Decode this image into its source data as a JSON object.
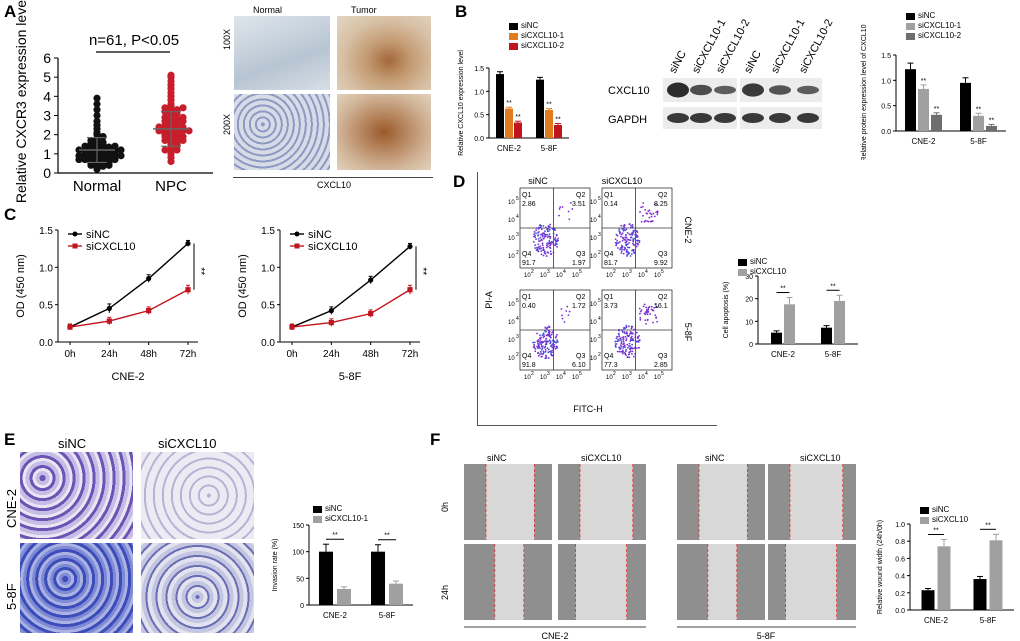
{
  "panels": {
    "A": {
      "letter": "A",
      "scatter": {
        "ylabel": "Relative CXCR3 expression level",
        "stat": "n=61, P<0.05",
        "groups": [
          "Normal",
          "NPC"
        ],
        "yticks": [
          "0",
          "1",
          "2",
          "3",
          "4",
          "5",
          "6"
        ],
        "ylim": [
          0,
          6
        ],
        "normal_points": [
          0.2,
          0.3,
          0.35,
          0.4,
          0.45,
          0.5,
          0.55,
          0.6,
          0.6,
          0.65,
          0.7,
          0.7,
          0.75,
          0.8,
          0.8,
          0.85,
          0.9,
          0.9,
          0.95,
          1.0,
          1.0,
          1.05,
          1.1,
          1.1,
          1.15,
          1.2,
          1.2,
          1.25,
          1.3,
          1.35,
          1.4,
          1.45,
          1.5,
          1.55,
          1.6,
          1.7,
          1.8,
          1.9,
          2.0,
          2.1,
          2.3,
          2.5,
          2.7,
          3.0,
          3.3,
          3.6,
          0.4,
          0.6,
          0.8,
          1.0,
          1.2,
          1.4,
          1.6,
          0.9,
          1.1,
          1.3,
          0.7,
          0.5,
          1.0,
          1.2,
          3.9
        ],
        "npc_points": [
          0.6,
          0.8,
          1.0,
          1.1,
          1.2,
          1.3,
          1.4,
          1.5,
          1.6,
          1.7,
          1.8,
          1.8,
          1.9,
          2.0,
          2.0,
          2.1,
          2.1,
          2.2,
          2.2,
          2.3,
          2.3,
          2.4,
          2.5,
          2.5,
          2.6,
          2.7,
          2.8,
          2.9,
          3.0,
          3.1,
          3.2,
          3.3,
          3.4,
          3.5,
          3.6,
          3.8,
          4.0,
          4.2,
          4.4,
          4.6,
          5.0,
          1.5,
          1.7,
          1.9,
          2.1,
          2.3,
          2.5,
          2.7,
          2.9,
          3.1,
          3.3,
          2.0,
          2.2,
          2.4,
          2.6,
          1.2,
          1.6,
          2.8,
          3.4,
          4.8,
          5.1
        ]
      },
      "ihc": {
        "cols": [
          "Normal",
          "Tumor"
        ],
        "rows": [
          "100X",
          "200X"
        ],
        "caption": "CXCL10"
      }
    },
    "B": {
      "letter": "B",
      "mrna": {
        "ylabel": "Relative CXCL10 expression level",
        "legend": [
          "siNC",
          "siCXCL10-1",
          "siCXCL10-2"
        ],
        "groups": [
          "CNE-2",
          "5-8F"
        ],
        "yticks": [
          "0.0",
          "0.5",
          "1.0",
          "1.5"
        ],
        "ylim": [
          0,
          1.5
        ],
        "sig": "**"
      },
      "blot": {
        "lanes": [
          "siNC",
          "siCXCL10-1",
          "siCXCL10-2",
          "siNC",
          "siCXCL10-1",
          "siCXCL10-2"
        ],
        "rows": [
          "CXCL10",
          "GAPDH"
        ]
      },
      "protein": {
        "ylabel": "Relative protein expression level of CXCL10",
        "legend": [
          "siNC",
          "siCXCL10-1",
          "siCXCL10-2"
        ],
        "groups": [
          "CNE-2",
          "5-8F"
        ],
        "yticks": [
          "0.0",
          "0.5",
          "1.0",
          "1.5"
        ],
        "ylim": [
          0,
          1.5
        ],
        "sig": "**"
      }
    },
    "C": {
      "letter": "C",
      "ylabel": "OD (450 nm)",
      "xticks": [
        "0h",
        "24h",
        "48h",
        "72h"
      ],
      "yticks": [
        "0.0",
        "0.5",
        "1.0",
        "1.5"
      ],
      "ylim": [
        0,
        1.5
      ],
      "legend": [
        "siNC",
        "siCXCL10"
      ],
      "sig": "**",
      "titles": [
        "CNE-2",
        "5-8F"
      ]
    },
    "D": {
      "letter": "D",
      "col_titles": [
        "siNC",
        "siCXCL10"
      ],
      "row_titles": [
        "CNE-2",
        "5-8F"
      ],
      "ylabel": "PI-A",
      "xlabel": "FITC-H",
      "quadrant_labels": [
        "Q1",
        "Q2",
        "Q3",
        "Q4"
      ],
      "decades": [
        "2",
        "3",
        "4",
        "5"
      ],
      "decade_base": "10",
      "plots": [
        {
          "q1": "2.86",
          "q2": "3.51",
          "q3": "1.97",
          "q4": "91.7"
        },
        {
          "q1": "0.14",
          "q2": "8.25",
          "q3": "9.92",
          "q4": "81.7"
        },
        {
          "q1": "0.40",
          "q2": "1.72",
          "q3": "6.10",
          "q4": "91.8"
        },
        {
          "q1": "3.73",
          "q2": "16.1",
          "q3": "2.85",
          "q4": "77.3"
        }
      ],
      "bar": {
        "ylabel": "Cell apoptosis (%)",
        "legend": [
          "siNC",
          "siCXCL10"
        ],
        "groups": [
          "CNE-2",
          "5-8F"
        ],
        "yticks": [
          "0",
          "10",
          "20",
          "30"
        ],
        "ylim": [
          0,
          30
        ],
        "sig": "**"
      }
    },
    "E": {
      "letter": "E",
      "col_titles": [
        "siNC",
        "siCXCL10"
      ],
      "row_titles": [
        "CNE-2",
        "5-8F"
      ],
      "bar": {
        "ylabel": "Invasion rate (%)",
        "legend": [
          "siNC",
          "siCXCL10-1"
        ],
        "groups": [
          "CNE-2",
          "5-8F"
        ],
        "yticks": [
          "0",
          "50",
          "100",
          "150"
        ],
        "ylim": [
          0,
          150
        ],
        "sig": "**"
      }
    },
    "F": {
      "letter": "F",
      "col_titles": [
        "siNC",
        "siCXCL10",
        "siNC",
        "siCXCL10"
      ],
      "row_titles": [
        "0h",
        "24h"
      ],
      "group_titles": [
        "CNE-2",
        "5-8F"
      ],
      "bar": {
        "ylabel": "Relative wound width (24h/0h)",
        "legend": [
          "siNC",
          "siCXCL10"
        ],
        "groups": [
          "CNE-2",
          "5-8F"
        ],
        "yticks": [
          "0.0",
          "0.2",
          "0.4",
          "0.6",
          "0.8",
          "1.0"
        ],
        "ylim": [
          0,
          1.0
        ],
        "sig": "**"
      }
    }
  },
  "chart_data": [
    {
      "type": "scatter",
      "xlabel": "",
      "ylabel": "Relative CXCR3 expression level",
      "categories": [
        "Normal",
        "NPC"
      ],
      "ylim": [
        0,
        6
      ],
      "series": [
        {
          "name": "Normal",
          "mean": 1.2,
          "sd": 0.65
        },
        {
          "name": "NPC",
          "mean": 2.3,
          "sd": 0.9
        }
      ]
    },
    {
      "type": "bar",
      "ylabel": "Relative CXCL10 expression level",
      "categories": [
        "CNE-2",
        "5-8F"
      ],
      "ylim": [
        0,
        1.5
      ],
      "series": [
        {
          "name": "siNC",
          "values": [
            1.37,
            1.25
          ],
          "errors": [
            0.05,
            0.05
          ]
        },
        {
          "name": "siCXCL10-1",
          "values": [
            0.63,
            0.6
          ],
          "errors": [
            0.03,
            0.03
          ]
        },
        {
          "name": "siCXCL10-2",
          "values": [
            0.33,
            0.28
          ],
          "errors": [
            0.03,
            0.03
          ]
        }
      ]
    },
    {
      "type": "bar",
      "ylabel": "Relative protein expression level of CXCL10",
      "categories": [
        "CNE-2",
        "5-8F"
      ],
      "ylim": [
        0,
        1.5
      ],
      "series": [
        {
          "name": "siNC",
          "values": [
            1.22,
            0.95
          ],
          "errors": [
            0.12,
            0.1
          ]
        },
        {
          "name": "siCXCL10-1",
          "values": [
            0.83,
            0.3
          ],
          "errors": [
            0.08,
            0.05
          ]
        },
        {
          "name": "siCXCL10-2",
          "values": [
            0.32,
            0.1
          ],
          "errors": [
            0.04,
            0.03
          ]
        }
      ]
    },
    {
      "type": "line",
      "title": "CNE-2",
      "xlabel": "",
      "ylabel": "OD (450 nm)",
      "x": [
        "0h",
        "24h",
        "48h",
        "72h"
      ],
      "ylim": [
        0,
        1.5
      ],
      "series": [
        {
          "name": "siNC",
          "values": [
            0.2,
            0.45,
            0.85,
            1.32
          ],
          "errors": [
            0.04,
            0.06,
            0.05,
            0.04
          ]
        },
        {
          "name": "siCXCL10",
          "values": [
            0.2,
            0.28,
            0.42,
            0.7
          ],
          "errors": [
            0.04,
            0.05,
            0.05,
            0.06
          ]
        }
      ]
    },
    {
      "type": "line",
      "title": "5-8F",
      "xlabel": "",
      "ylabel": "OD (450 nm)",
      "x": [
        "0h",
        "24h",
        "48h",
        "72h"
      ],
      "ylim": [
        0,
        1.5
      ],
      "series": [
        {
          "name": "siNC",
          "values": [
            0.2,
            0.42,
            0.83,
            1.28
          ],
          "errors": [
            0.04,
            0.05,
            0.05,
            0.04
          ]
        },
        {
          "name": "siCXCL10",
          "values": [
            0.2,
            0.26,
            0.38,
            0.7
          ],
          "errors": [
            0.04,
            0.05,
            0.05,
            0.06
          ]
        }
      ]
    },
    {
      "type": "bar",
      "ylabel": "Cell apoptosis (%)",
      "categories": [
        "CNE-2",
        "5-8F"
      ],
      "ylim": [
        0,
        30
      ],
      "series": [
        {
          "name": "siNC",
          "values": [
            5,
            7.2
          ],
          "errors": [
            0.8,
            0.9
          ]
        },
        {
          "name": "siCXCL10",
          "values": [
            17.5,
            19
          ],
          "errors": [
            3,
            2.5
          ]
        }
      ]
    },
    {
      "type": "bar",
      "ylabel": "Invasion rate (%)",
      "categories": [
        "CNE-2",
        "5-8F"
      ],
      "ylim": [
        0,
        150
      ],
      "series": [
        {
          "name": "siNC",
          "values": [
            100,
            100
          ],
          "errors": [
            14,
            13
          ]
        },
        {
          "name": "siCXCL10-1",
          "values": [
            30,
            40
          ],
          "errors": [
            4,
            5
          ]
        }
      ]
    },
    {
      "type": "bar",
      "ylabel": "Relative wound width (24h/0h)",
      "categories": [
        "CNE-2",
        "5-8F"
      ],
      "ylim": [
        0,
        1.0
      ],
      "series": [
        {
          "name": "siNC",
          "values": [
            0.23,
            0.36
          ],
          "errors": [
            0.02,
            0.03
          ]
        },
        {
          "name": "siCXCL10",
          "values": [
            0.74,
            0.81
          ],
          "errors": [
            0.08,
            0.07
          ]
        }
      ]
    }
  ]
}
